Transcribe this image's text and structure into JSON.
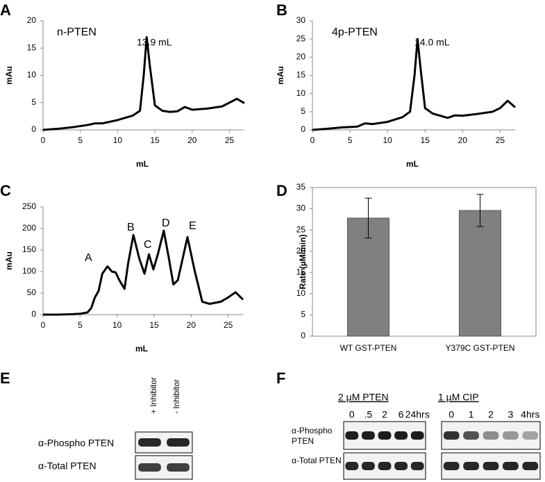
{
  "chart_data": [
    {
      "type": "line",
      "panel": "A",
      "xlabel": "mL",
      "ylabel": "mAu",
      "annotations": [
        "n-PTEN",
        "13.9 mL"
      ],
      "color": "#000000",
      "x": [
        0,
        2,
        4,
        6,
        7,
        8,
        10,
        12,
        13,
        13.5,
        13.9,
        14.3,
        15,
        16,
        17,
        18,
        19,
        20,
        22,
        24,
        25,
        26,
        27
      ],
      "values": [
        0,
        0.2,
        0.5,
        0.9,
        1.2,
        1.2,
        1.8,
        2.6,
        3.5,
        10,
        17,
        12,
        4.5,
        3.5,
        3.3,
        3.4,
        4.2,
        3.7,
        3.9,
        4.3,
        5,
        5.7,
        4.9
      ],
      "xlim": [
        0,
        27
      ],
      "xticks": [
        0,
        5,
        10,
        15,
        20,
        25
      ],
      "ylim": [
        0,
        20
      ],
      "yticks": [
        0,
        5,
        10,
        15,
        20
      ]
    },
    {
      "type": "line",
      "panel": "B",
      "xlabel": "mL",
      "ylabel": "mAu",
      "annotations": [
        "4p-PTEN",
        "14.0 mL"
      ],
      "color": "#000000",
      "x": [
        0,
        2,
        4,
        6,
        7,
        8,
        10,
        12,
        13,
        13.6,
        14,
        14.4,
        15,
        16,
        17,
        18,
        19,
        20,
        22,
        24,
        25,
        26,
        27
      ],
      "values": [
        0,
        0.3,
        0.7,
        0.9,
        1.8,
        1.6,
        2.2,
        3.5,
        5,
        15,
        25,
        17,
        6,
        4.5,
        3.9,
        3.3,
        4,
        3.9,
        4.4,
        5,
        6,
        8,
        6.2
      ],
      "xlim": [
        0,
        27
      ],
      "xticks": [
        0,
        5,
        10,
        15,
        20,
        25
      ],
      "ylim": [
        0,
        30
      ],
      "yticks": [
        0,
        5,
        10,
        15,
        20,
        25,
        30
      ]
    },
    {
      "type": "line",
      "panel": "C",
      "xlabel": "mL",
      "ylabel": "mAu",
      "annotations": [
        "A",
        "B",
        "C",
        "D",
        "E"
      ],
      "color": "#000000",
      "x": [
        0,
        2,
        4,
        5,
        6,
        6.5,
        7,
        7.5,
        8,
        8.7,
        9.3,
        9.8,
        10.3,
        11,
        11.5,
        12.2,
        13,
        13.7,
        14.3,
        14.9,
        15.5,
        16.3,
        17,
        17.6,
        18.2,
        19.5,
        20.5,
        21.5,
        22.5,
        24,
        25,
        26,
        27
      ],
      "values": [
        0,
        0,
        1,
        2,
        5,
        15,
        40,
        55,
        95,
        112,
        100,
        98,
        80,
        60,
        120,
        185,
        130,
        95,
        140,
        105,
        140,
        195,
        130,
        70,
        80,
        180,
        100,
        30,
        25,
        30,
        40,
        52,
        35
      ],
      "xlim": [
        0,
        27
      ],
      "xticks": [
        0,
        5,
        10,
        15,
        20,
        25
      ],
      "ylim": [
        0,
        250
      ],
      "yticks": [
        0,
        50,
        100,
        150,
        200,
        250
      ]
    },
    {
      "type": "bar",
      "panel": "D",
      "ylabel": "Rate (µM/min)",
      "color": "#808080",
      "categories": [
        "WT GST-PTEN",
        "Y379C GST-PTEN"
      ],
      "values": [
        27.8,
        29.6
      ],
      "errors": [
        4.7,
        3.8
      ],
      "ylim": [
        0,
        35
      ],
      "yticks": [
        0,
        5,
        10,
        15,
        20,
        25,
        30,
        35
      ]
    }
  ],
  "blots": [
    {
      "panel": "E",
      "columns": [
        "+ Inhibitor",
        "- Inhibitor"
      ],
      "rows": [
        "α-Phospho PTEN",
        "α-Total PTEN"
      ]
    },
    {
      "panel": "F",
      "groups": [
        {
          "title": "2 µM PTEN",
          "lanes": [
            "0",
            ".5",
            "2",
            "6",
            "24hrs"
          ]
        },
        {
          "title": "1 µM CIP",
          "lanes": [
            "0",
            "1",
            "2",
            "3",
            "4hrs"
          ]
        }
      ],
      "rows": [
        "α-Phospho PTEN",
        "α-Total PTEN"
      ]
    }
  ]
}
